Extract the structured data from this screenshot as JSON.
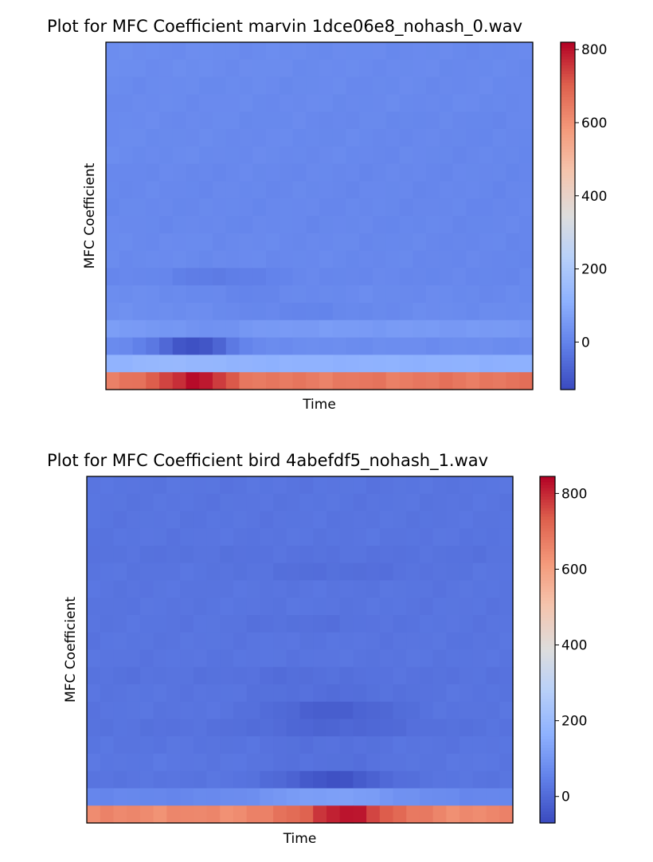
{
  "chart_data": [
    {
      "type": "heatmap",
      "title": "Plot for MFC Coefficient marvin 1dce06e8_nohash_0.wav",
      "xlabel": "Time",
      "ylabel": "MFC Coefficient",
      "colormap": "coolwarm",
      "colorbar_range": [
        -130,
        820
      ],
      "colorbar_ticks": [
        0,
        200,
        400,
        600,
        800
      ],
      "rows": 20,
      "cols": 32,
      "row_profiles": [
        {
          "row": 0,
          "start": 20,
          "end": 10,
          "dip_center": null,
          "dip_width": 0,
          "dip_depth": 0,
          "ripple": 6
        },
        {
          "row": 1,
          "start": 20,
          "end": 10,
          "dip_center": null,
          "dip_width": 0,
          "dip_depth": 0,
          "ripple": 6
        },
        {
          "row": 2,
          "start": 15,
          "end": 10,
          "dip_center": null,
          "dip_width": 0,
          "dip_depth": 0,
          "ripple": 6
        },
        {
          "row": 3,
          "start": 15,
          "end": 10,
          "dip_center": null,
          "dip_width": 0,
          "dip_depth": 0,
          "ripple": 6
        },
        {
          "row": 4,
          "start": 15,
          "end": 5,
          "dip_center": null,
          "dip_width": 0,
          "dip_depth": 0,
          "ripple": 6
        },
        {
          "row": 5,
          "start": 15,
          "end": 5,
          "dip_center": null,
          "dip_width": 0,
          "dip_depth": 0,
          "ripple": 6
        },
        {
          "row": 6,
          "start": 15,
          "end": 5,
          "dip_center": null,
          "dip_width": 0,
          "dip_depth": 0,
          "ripple": 6
        },
        {
          "row": 7,
          "start": 10,
          "end": 5,
          "dip_center": null,
          "dip_width": 0,
          "dip_depth": 0,
          "ripple": 6
        },
        {
          "row": 8,
          "start": 10,
          "end": 5,
          "dip_center": null,
          "dip_width": 0,
          "dip_depth": 0,
          "ripple": 6
        },
        {
          "row": 9,
          "start": 10,
          "end": 5,
          "dip_center": null,
          "dip_width": 0,
          "dip_depth": 0,
          "ripple": 6
        },
        {
          "row": 10,
          "start": 10,
          "end": 5,
          "dip_center": null,
          "dip_width": 0,
          "dip_depth": 0,
          "ripple": 6
        },
        {
          "row": 11,
          "start": 15,
          "end": 5,
          "dip_center": null,
          "dip_width": 0,
          "dip_depth": 0,
          "ripple": 6
        },
        {
          "row": 12,
          "start": 15,
          "end": 5,
          "dip_center": null,
          "dip_width": 0,
          "dip_depth": 0,
          "ripple": 6
        },
        {
          "row": 13,
          "start": 10,
          "end": 5,
          "dip_center": 8,
          "dip_width": 4,
          "dip_depth": 30,
          "ripple": 6
        },
        {
          "row": 14,
          "start": 20,
          "end": 10,
          "dip_center": 10,
          "dip_width": 4,
          "dip_depth": 15,
          "ripple": 6
        },
        {
          "row": 15,
          "start": 25,
          "end": 15,
          "dip_center": 14,
          "dip_width": 6,
          "dip_depth": 20,
          "ripple": 6
        },
        {
          "row": 16,
          "start": 60,
          "end": 50,
          "dip_center": 7,
          "dip_width": 4,
          "dip_depth": 25,
          "ripple": 6
        },
        {
          "row": 17,
          "start": 20,
          "end": 20,
          "dip_center": 6,
          "dip_width": 3,
          "dip_depth": 140,
          "ripple": 6
        },
        {
          "row": 18,
          "start": 120,
          "end": 110,
          "dip_center": 5,
          "dip_width": 3,
          "dip_depth": -20,
          "ripple": 6
        },
        {
          "row": 19,
          "start": 640,
          "end": 660,
          "dip_center": 6,
          "dip_width": 3,
          "dip_depth": -160,
          "ripple": 20
        }
      ]
    },
    {
      "type": "heatmap",
      "title": "Plot for MFC Coefficient bird 4abefdf5_nohash_1.wav",
      "xlabel": "Time",
      "ylabel": "MFC Coefficient",
      "colormap": "coolwarm",
      "colorbar_range": [
        -70,
        845
      ],
      "colorbar_ticks": [
        0,
        200,
        400,
        600,
        800
      ],
      "rows": 20,
      "cols": 32,
      "row_profiles": [
        {
          "row": 0,
          "start": 20,
          "end": 20,
          "dip_center": null,
          "dip_width": 0,
          "dip_depth": 0,
          "ripple": 6
        },
        {
          "row": 1,
          "start": 20,
          "end": 20,
          "dip_center": null,
          "dip_width": 0,
          "dip_depth": 0,
          "ripple": 6
        },
        {
          "row": 2,
          "start": 20,
          "end": 20,
          "dip_center": null,
          "dip_width": 0,
          "dip_depth": 0,
          "ripple": 6
        },
        {
          "row": 3,
          "start": 20,
          "end": 20,
          "dip_center": null,
          "dip_width": 0,
          "dip_depth": 0,
          "ripple": 6
        },
        {
          "row": 4,
          "start": 15,
          "end": 15,
          "dip_center": null,
          "dip_width": 0,
          "dip_depth": 0,
          "ripple": 6
        },
        {
          "row": 5,
          "start": 20,
          "end": 20,
          "dip_center": 18,
          "dip_width": 6,
          "dip_depth": 15,
          "ripple": 6
        },
        {
          "row": 6,
          "start": 20,
          "end": 20,
          "dip_center": null,
          "dip_width": 0,
          "dip_depth": 0,
          "ripple": 6
        },
        {
          "row": 7,
          "start": 20,
          "end": 20,
          "dip_center": null,
          "dip_width": 0,
          "dip_depth": 0,
          "ripple": 6
        },
        {
          "row": 8,
          "start": 20,
          "end": 20,
          "dip_center": 16,
          "dip_width": 5,
          "dip_depth": 10,
          "ripple": 6
        },
        {
          "row": 9,
          "start": 20,
          "end": 20,
          "dip_center": null,
          "dip_width": 0,
          "dip_depth": 0,
          "ripple": 6
        },
        {
          "row": 10,
          "start": 20,
          "end": 20,
          "dip_center": null,
          "dip_width": 0,
          "dip_depth": 0,
          "ripple": 6
        },
        {
          "row": 11,
          "start": 15,
          "end": 15,
          "dip_center": 15,
          "dip_width": 4,
          "dip_depth": 10,
          "ripple": 6
        },
        {
          "row": 12,
          "start": 20,
          "end": 20,
          "dip_center": 18,
          "dip_width": 6,
          "dip_depth": 15,
          "ripple": 6
        },
        {
          "row": 13,
          "start": 20,
          "end": 20,
          "dip_center": 18,
          "dip_width": 5,
          "dip_depth": 50,
          "ripple": 6
        },
        {
          "row": 14,
          "start": 15,
          "end": 15,
          "dip_center": 18,
          "dip_width": 6,
          "dip_depth": 30,
          "ripple": 6
        },
        {
          "row": 15,
          "start": 20,
          "end": 20,
          "dip_center": 17,
          "dip_width": 5,
          "dip_depth": 10,
          "ripple": 6
        },
        {
          "row": 16,
          "start": 25,
          "end": 25,
          "dip_center": 18,
          "dip_width": 6,
          "dip_depth": 15,
          "ripple": 6
        },
        {
          "row": 17,
          "start": 20,
          "end": 20,
          "dip_center": 18,
          "dip_width": 4,
          "dip_depth": 75,
          "ripple": 6
        },
        {
          "row": 18,
          "start": 60,
          "end": 60,
          "dip_center": 18,
          "dip_width": 6,
          "dip_depth": -60,
          "ripple": 6
        },
        {
          "row": 19,
          "start": 650,
          "end": 650,
          "dip_center": 19,
          "dip_width": 4,
          "dip_depth": -170,
          "ripple": 20
        }
      ]
    }
  ]
}
